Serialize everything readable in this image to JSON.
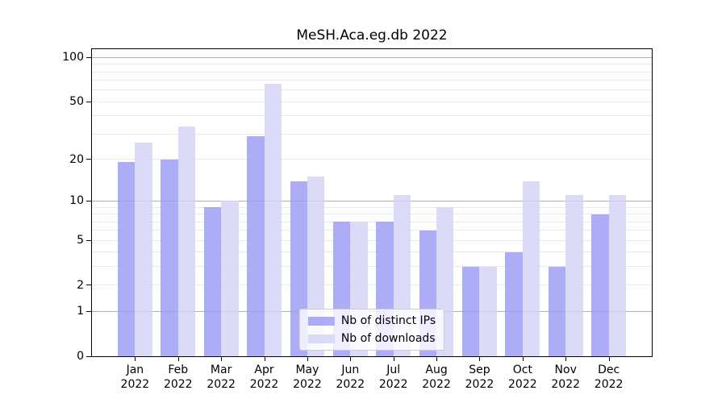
{
  "chart_data": {
    "type": "bar",
    "title": "MeSH.Aca.eg.db 2022",
    "scale": "log10(x+1)",
    "months": [
      "Jan",
      "Feb",
      "Mar",
      "Apr",
      "May",
      "Jun",
      "Jul",
      "Aug",
      "Sep",
      "Oct",
      "Nov",
      "Dec"
    ],
    "year": "2022",
    "series": [
      {
        "name": "Nb of distinct IPs",
        "slug": "distinct-ips",
        "color": "rgba(157,157,246,0.85)",
        "values": [
          19,
          20,
          9,
          29,
          14,
          7,
          7,
          6,
          3,
          4,
          3,
          8
        ]
      },
      {
        "name": "Nb of downloads",
        "slug": "downloads",
        "color": "rgba(213,213,247,0.85)",
        "values": [
          26,
          34,
          10,
          66,
          15,
          7,
          11,
          9,
          3,
          14,
          11,
          11
        ]
      }
    ],
    "y_ticks": [
      0,
      1,
      2,
      5,
      10,
      20,
      50,
      100
    ],
    "ylim": [
      0,
      114
    ],
    "grid": {
      "major": [
        1,
        10,
        100
      ],
      "minor": [
        2,
        3,
        4,
        5,
        6,
        7,
        8,
        9,
        20,
        30,
        40,
        50,
        60,
        70,
        80,
        90
      ]
    },
    "colors": {
      "grid_major": "#b0b0b0",
      "grid_minor": "#e9e9e9",
      "axis": "#000000",
      "text": "#000000"
    },
    "legend": {
      "position": "lower center",
      "entries": [
        "Nb of distinct IPs",
        "Nb of downloads"
      ]
    }
  }
}
